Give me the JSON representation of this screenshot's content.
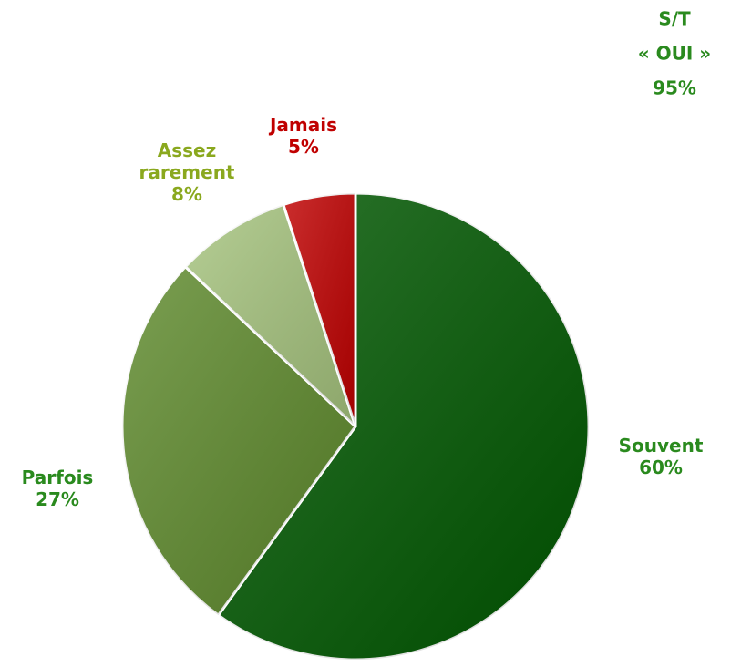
{
  "chart_data": {
    "type": "pie",
    "categories": [
      "Souvent",
      "Parfois",
      "Assez rarement",
      "Jamais"
    ],
    "values": [
      60,
      27,
      8,
      5
    ],
    "value_labels": [
      "60%",
      "27%",
      "8%",
      "5%"
    ],
    "colors": [
      "#005800",
      "#5e8a2c",
      "#a6c47e",
      "#c00000"
    ],
    "label_colors": [
      "#2a8a1e",
      "#2a8a1e",
      "#8aa81e",
      "#c00000"
    ],
    "annotation": [
      "S/T",
      "« OUI »",
      "95%"
    ],
    "annotation_color": "#2a8a1e"
  }
}
